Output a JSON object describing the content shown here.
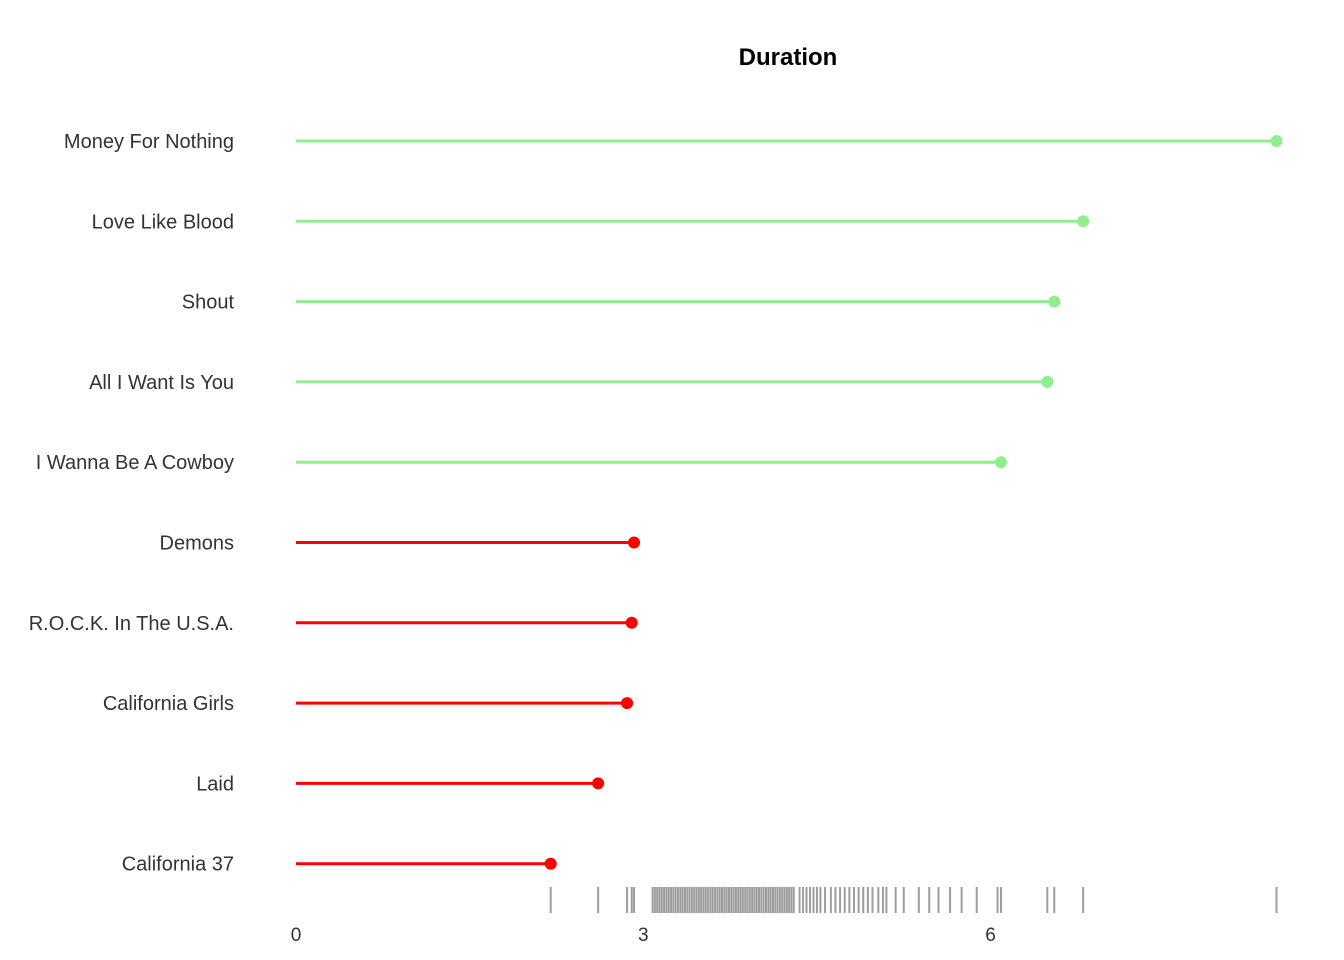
{
  "chart_data": {
    "type": "lollipop",
    "title": "Duration",
    "xlabel": "",
    "ylabel": "",
    "xlim": [
      0,
      8.5
    ],
    "x_ticks": [
      0,
      3,
      6
    ],
    "grid": false,
    "legend": "none",
    "categories": [
      "Money For Nothing",
      "Love Like Blood",
      "Shout",
      "All I Want Is You",
      "I Wanna Be A Cowboy",
      "Demons",
      "R.O.C.K. In The U.S.A.",
      "California Girls",
      "Laid",
      "California 37"
    ],
    "values": [
      8.47,
      6.8,
      6.55,
      6.49,
      6.09,
      2.92,
      2.9,
      2.86,
      2.61,
      2.2
    ],
    "groups": [
      "long",
      "long",
      "long",
      "long",
      "long",
      "short",
      "short",
      "short",
      "short",
      "short"
    ],
    "colors": {
      "long": "#90EE90",
      "short": "#FF0000"
    },
    "rug": [
      2.2,
      2.61,
      2.86,
      2.9,
      2.92,
      3.08,
      3.1,
      3.12,
      3.14,
      3.16,
      3.18,
      3.2,
      3.22,
      3.24,
      3.26,
      3.28,
      3.3,
      3.32,
      3.34,
      3.36,
      3.38,
      3.4,
      3.42,
      3.44,
      3.46,
      3.48,
      3.5,
      3.52,
      3.54,
      3.56,
      3.58,
      3.6,
      3.62,
      3.64,
      3.66,
      3.68,
      3.7,
      3.72,
      3.74,
      3.76,
      3.78,
      3.8,
      3.82,
      3.84,
      3.86,
      3.88,
      3.9,
      3.92,
      3.94,
      3.96,
      3.98,
      4.0,
      4.02,
      4.04,
      4.06,
      4.08,
      4.1,
      4.12,
      4.14,
      4.16,
      4.18,
      4.2,
      4.22,
      4.24,
      4.26,
      4.28,
      4.3,
      4.35,
      4.38,
      4.41,
      4.44,
      4.47,
      4.5,
      4.53,
      4.57,
      4.62,
      4.66,
      4.7,
      4.74,
      4.78,
      4.82,
      4.86,
      4.9,
      4.94,
      4.98,
      5.03,
      5.07,
      5.1,
      5.18,
      5.25,
      5.38,
      5.47,
      5.55,
      5.65,
      5.75,
      5.88,
      6.06,
      6.09,
      6.49,
      6.55,
      6.8,
      8.47
    ],
    "rug_color": "#4d4d4d"
  }
}
